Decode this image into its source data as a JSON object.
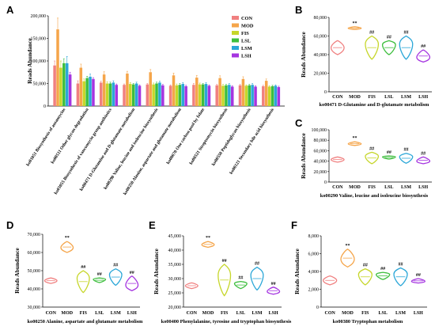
{
  "colors": {
    "CON": "#F08080",
    "MOD": "#F5A54A",
    "FIS": "#C6D62A",
    "LSL": "#3DBE3D",
    "LSM": "#2BA7D8",
    "LSH": "#A535E0",
    "axis": "#000000"
  },
  "groups": [
    "CON",
    "MOD",
    "FIS",
    "LSL",
    "LSM",
    "LSH"
  ],
  "panel_letters": [
    "A",
    "B",
    "C",
    "D",
    "E",
    "F"
  ],
  "chart_data": [
    {
      "panel": "A",
      "type": "bar",
      "ylabel": "Reads Abundance",
      "ylim": [
        0,
        200000
      ],
      "yticks": [
        "0",
        "50,000",
        "100,000",
        "150,000",
        "200,000"
      ],
      "legend": [
        "CON",
        "MOD",
        "FIS",
        "LSL",
        "LSM",
        "LSH"
      ],
      "legend_position": "top-right",
      "categories": [
        "ko01051 Biosynthesis of ansamycins",
        "ko00511 Other glycan degradation",
        "ko01055 Biosynthesis of vancomycin group antibiotics",
        "ko00471 D-Glutamine and D-glutamate metabolism",
        "ko00290 Valine, leucine and isoleucine biosynthesis",
        "ko00250 Alanine, aspartate and glutamate metabolism",
        "ko00670 One carbon pool by folate",
        "ko00521 Streptomycin biosynthesis",
        "ko00550 Peptidoglycan biosynthesis",
        "ko00121 Secondary bile acid biosynthesis"
      ],
      "series": [
        {
          "name": "CON",
          "values": [
            90000,
            50000,
            52000,
            47000,
            48000,
            45000,
            47000,
            46000,
            46000,
            44000
          ],
          "err": [
            10000,
            6000,
            3000,
            2000,
            2000,
            2000,
            3000,
            2000,
            2000,
            2000
          ]
        },
        {
          "name": "MOD",
          "values": [
            170000,
            85000,
            70000,
            72000,
            75000,
            68000,
            63000,
            62000,
            60000,
            56000
          ],
          "err": [
            25000,
            8000,
            6000,
            5000,
            6000,
            5000,
            5000,
            5000,
            5000,
            4000
          ]
        },
        {
          "name": "FIS",
          "values": [
            85000,
            55000,
            50000,
            49000,
            48000,
            46000,
            48000,
            45000,
            45000,
            43000
          ],
          "err": [
            15000,
            5000,
            4000,
            3000,
            3000,
            3000,
            3000,
            3000,
            2000,
            2000
          ]
        },
        {
          "name": "LSL",
          "values": [
            95000,
            62000,
            50000,
            48000,
            50000,
            47000,
            48000,
            46000,
            46000,
            44000
          ],
          "err": [
            10000,
            4000,
            3000,
            2000,
            3000,
            3000,
            2000,
            2000,
            2000,
            2000
          ]
        },
        {
          "name": "LSM",
          "values": [
            95000,
            65000,
            52000,
            50000,
            52000,
            49000,
            49000,
            47000,
            47000,
            45000
          ],
          "err": [
            15000,
            6000,
            4000,
            3000,
            3000,
            3000,
            3000,
            3000,
            3000,
            2000
          ]
        },
        {
          "name": "LSH",
          "values": [
            70000,
            60000,
            47000,
            45000,
            46000,
            44000,
            45000,
            43000,
            43000,
            42000
          ],
          "err": [
            5000,
            3000,
            2000,
            2000,
            2000,
            2000,
            2000,
            2000,
            2000,
            2000
          ]
        }
      ]
    },
    {
      "panel": "B",
      "type": "violin",
      "ylabel": "Reads Abundance",
      "xlabel": "ko00471 D-Glutamine and D-glutamate metabolism",
      "ylim": [
        0,
        80000
      ],
      "yticks": [
        "0",
        "20,000",
        "40,000",
        "60,000",
        "80,000"
      ],
      "categories": [
        "CON",
        "MOD",
        "FIS",
        "LSL",
        "LSM",
        "LSH"
      ],
      "ranges": [
        [
          40000,
          55000
        ],
        [
          67000,
          70000
        ],
        [
          35000,
          60000
        ],
        [
          40000,
          55000
        ],
        [
          35000,
          60000
        ],
        [
          32000,
          45000
        ]
      ],
      "significance": [
        "",
        "**",
        "##",
        "##",
        "##",
        "##"
      ]
    },
    {
      "panel": "C",
      "type": "violin",
      "ylabel": "Reads Abundance",
      "xlabel": "ko00290 Valine, leucine and isoleucine biosynthesis",
      "ylim": [
        0,
        100000
      ],
      "yticks": [
        "0",
        "20,000",
        "40,000",
        "60,000",
        "80,000",
        "100,000"
      ],
      "categories": [
        "CON",
        "MOD",
        "FIS",
        "LSL",
        "LSM",
        "LSH"
      ],
      "ranges": [
        [
          38000,
          48000
        ],
        [
          70000,
          77000
        ],
        [
          35000,
          57000
        ],
        [
          44000,
          50000
        ],
        [
          36000,
          55000
        ],
        [
          35000,
          48000
        ]
      ],
      "significance": [
        "",
        "**",
        "##",
        "##",
        "##",
        "##"
      ]
    },
    {
      "panel": "D",
      "type": "violin",
      "ylabel": "Reads Abundance",
      "xlabel": "ko00250 Alanine, aspartate and glutamate metabolism",
      "ylim": [
        30000,
        70000
      ],
      "yticks": [
        "30,000",
        "40,000",
        "50,000",
        "60,000",
        "70,000"
      ],
      "categories": [
        "CON",
        "MOD",
        "FIS",
        "LSL",
        "LSM",
        "LSH"
      ],
      "ranges": [
        [
          43000,
          46000
        ],
        [
          60000,
          66000
        ],
        [
          38000,
          50000
        ],
        [
          43500,
          46000
        ],
        [
          42000,
          51000
        ],
        [
          39000,
          47000
        ]
      ],
      "significance": [
        "",
        "**",
        "##",
        "##",
        "##",
        "##"
      ]
    },
    {
      "panel": "E",
      "type": "violin",
      "ylabel": "Reads Abundance",
      "xlabel": "ko00400 Phenylalanine, tyrosine and tryptophan biosynthesis",
      "ylim": [
        20000,
        45000
      ],
      "yticks": [
        "20,000",
        "25,000",
        "30,000",
        "35,000",
        "40,000",
        "45,000"
      ],
      "categories": [
        "CON",
        "MOD",
        "FIS",
        "LSL",
        "LSM",
        "LSH"
      ],
      "ranges": [
        [
          26500,
          28500
        ],
        [
          41000,
          43000
        ],
        [
          24000,
          35000
        ],
        [
          26500,
          29000
        ],
        [
          26000,
          34000
        ],
        [
          24500,
          27000
        ]
      ],
      "significance": [
        "",
        "**",
        "##",
        "##",
        "##",
        "##"
      ]
    },
    {
      "panel": "F",
      "type": "violin",
      "ylabel": "Reads Abundance",
      "xlabel": "ko00380 Tryptophan metabolism",
      "ylim": [
        0,
        8000
      ],
      "yticks": [
        "0",
        "2,000",
        "4,000",
        "6,000",
        "8,000"
      ],
      "categories": [
        "CON",
        "MOD",
        "FIS",
        "LSL",
        "LSM",
        "LSH"
      ],
      "ranges": [
        [
          2500,
          3500
        ],
        [
          4500,
          6500
        ],
        [
          2500,
          4300
        ],
        [
          3100,
          3900
        ],
        [
          2400,
          4400
        ],
        [
          2700,
          3200
        ]
      ],
      "significance": [
        "",
        "**",
        "##",
        "##",
        "##",
        "##"
      ]
    }
  ]
}
